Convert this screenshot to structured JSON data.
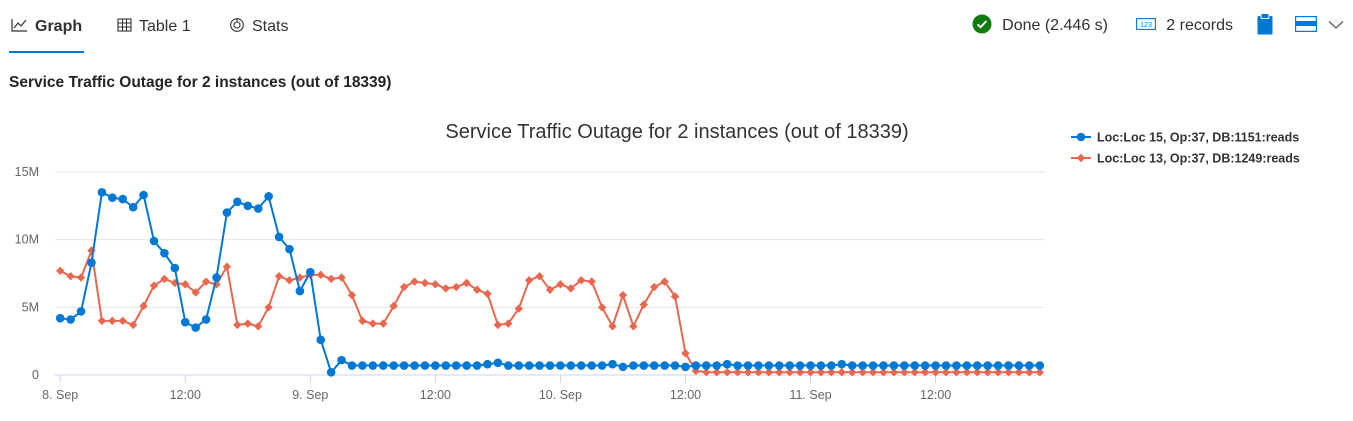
{
  "tabs": [
    {
      "label": "Graph",
      "icon": "line-chart-icon",
      "active": true
    },
    {
      "label": "Table 1",
      "icon": "table-icon",
      "active": false
    },
    {
      "label": "Stats",
      "icon": "stats-icon",
      "active": false
    }
  ],
  "toolbar": {
    "status_text": "Done (2.446 s)",
    "status_icon": "check-circle-icon",
    "status_color": "#107c10",
    "records_text": "2 records",
    "records_icon": "records-icon",
    "clipboard_icon": "clipboard-icon",
    "layout_icon": "layout-icon",
    "dropdown_icon": "chevron-down-icon",
    "accent": "#0078d4"
  },
  "chart_header": "Service Traffic Outage for 2 instances (out of 18339)",
  "chart_data": {
    "type": "line",
    "title": "Service Traffic Outage for 2 instances (out of 18339)",
    "xlabel": "",
    "ylabel": "",
    "x_unit": "hours since first sample (8 Sep 00:00)",
    "x_ticks": [
      {
        "x": 0,
        "label": "8. Sep"
      },
      {
        "x": 12,
        "label": "12:00"
      },
      {
        "x": 24,
        "label": "9. Sep"
      },
      {
        "x": 36,
        "label": "12:00"
      },
      {
        "x": 48,
        "label": "10. Sep"
      },
      {
        "x": 60,
        "label": "12:00"
      },
      {
        "x": 72,
        "label": "11. Sep"
      },
      {
        "x": 84,
        "label": "12:00"
      }
    ],
    "xlim": [
      -0.5,
      94.5
    ],
    "ylim": [
      0,
      15000000
    ],
    "y_ticks": [
      {
        "y": 0,
        "label": "0"
      },
      {
        "y": 5000000,
        "label": "5M"
      },
      {
        "y": 10000000,
        "label": "10M"
      },
      {
        "y": 15000000,
        "label": "15M"
      }
    ],
    "grid": true,
    "legend_position": "top-right",
    "series": [
      {
        "name": "Loc:Loc 15, Op:37, DB:1151:reads",
        "color": "#0078d4",
        "marker": "circle",
        "values": [
          4200000,
          4100000,
          4700000,
          8300000,
          13500000,
          13100000,
          13000000,
          12400000,
          13300000,
          9900000,
          9000000,
          7900000,
          3900000,
          3500000,
          4100000,
          7200000,
          12000000,
          12800000,
          12500000,
          12300000,
          13200000,
          10200000,
          9300000,
          6200000,
          7600000,
          2600000,
          200000,
          1100000,
          700000,
          700000,
          700000,
          700000,
          700000,
          700000,
          700000,
          700000,
          700000,
          700000,
          700000,
          700000,
          700000,
          800000,
          900000,
          700000,
          700000,
          700000,
          700000,
          700000,
          700000,
          700000,
          700000,
          700000,
          700000,
          800000,
          600000,
          700000,
          700000,
          700000,
          700000,
          700000,
          600000,
          700000,
          700000,
          700000,
          800000,
          700000,
          700000,
          700000,
          700000,
          700000,
          700000,
          700000,
          700000,
          700000,
          700000,
          800000,
          700000,
          700000,
          700000,
          700000,
          700000,
          700000,
          700000,
          700000,
          700000,
          700000,
          700000,
          700000,
          700000,
          700000,
          700000,
          700000,
          700000,
          700000,
          700000
        ]
      },
      {
        "name": "Loc:Loc 13, Op:37, DB:1249:reads",
        "color": "#e8674f",
        "marker": "diamond",
        "values": [
          7700000,
          7300000,
          7200000,
          9200000,
          4000000,
          4000000,
          4000000,
          3700000,
          5100000,
          6600000,
          7100000,
          6800000,
          6700000,
          6100000,
          6900000,
          6700000,
          8000000,
          3700000,
          3800000,
          3600000,
          5000000,
          7300000,
          7000000,
          7200000,
          7400000,
          7400000,
          7100000,
          7200000,
          5900000,
          4000000,
          3800000,
          3800000,
          5100000,
          6500000,
          6900000,
          6800000,
          6700000,
          6400000,
          6500000,
          6800000,
          6300000,
          6000000,
          3700000,
          3800000,
          4900000,
          7000000,
          7300000,
          6300000,
          6700000,
          6400000,
          7000000,
          6900000,
          5000000,
          3600000,
          5900000,
          3600000,
          5200000,
          6500000,
          6900000,
          5800000,
          1600000,
          300000,
          200000,
          200000,
          200000,
          200000,
          200000,
          200000,
          200000,
          200000,
          200000,
          200000,
          200000,
          200000,
          200000,
          200000,
          200000,
          200000,
          200000,
          200000,
          200000,
          200000,
          200000,
          200000,
          200000,
          200000,
          200000,
          200000,
          200000,
          200000,
          200000,
          200000,
          200000,
          200000,
          200000
        ]
      }
    ]
  }
}
